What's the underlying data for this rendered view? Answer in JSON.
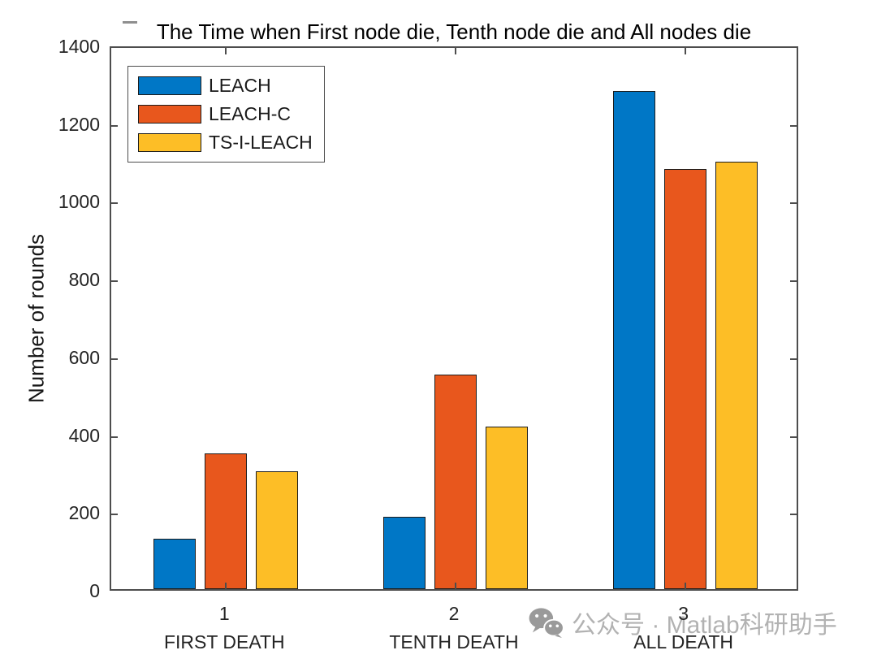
{
  "chart_data": {
    "type": "bar",
    "title": "The Time when First node die, Tenth node die and All nodes die",
    "xlabel": "",
    "ylabel": "Number of rounds",
    "ylim": [
      0,
      1400
    ],
    "yticks": [
      0,
      200,
      400,
      600,
      800,
      1000,
      1200,
      1400
    ],
    "categories": [
      "1",
      "2",
      "3"
    ],
    "category_sublabels": [
      "FIRST DEATH",
      "TENTH DEATH",
      "ALL DEATH"
    ],
    "series": [
      {
        "name": "LEACH",
        "color": "#0077C6",
        "values": [
          130,
          185,
          1280
        ]
      },
      {
        "name": "LEACH-C",
        "color": "#E8571D",
        "values": [
          348,
          552,
          1080
        ]
      },
      {
        "name": "TS-I-LEACH",
        "color": "#FDBE26",
        "values": [
          303,
          418,
          1100
        ]
      }
    ],
    "legend_position": "top-left",
    "grid": false,
    "bar_edge_color": "#1c1c1c",
    "axis_color": "#4d4d4d",
    "tick_label_color": "#242424"
  },
  "watermark": {
    "icon": "wechat-icon",
    "text": "公众号 · Matlab科研助手",
    "color": "#b2b2b2"
  }
}
